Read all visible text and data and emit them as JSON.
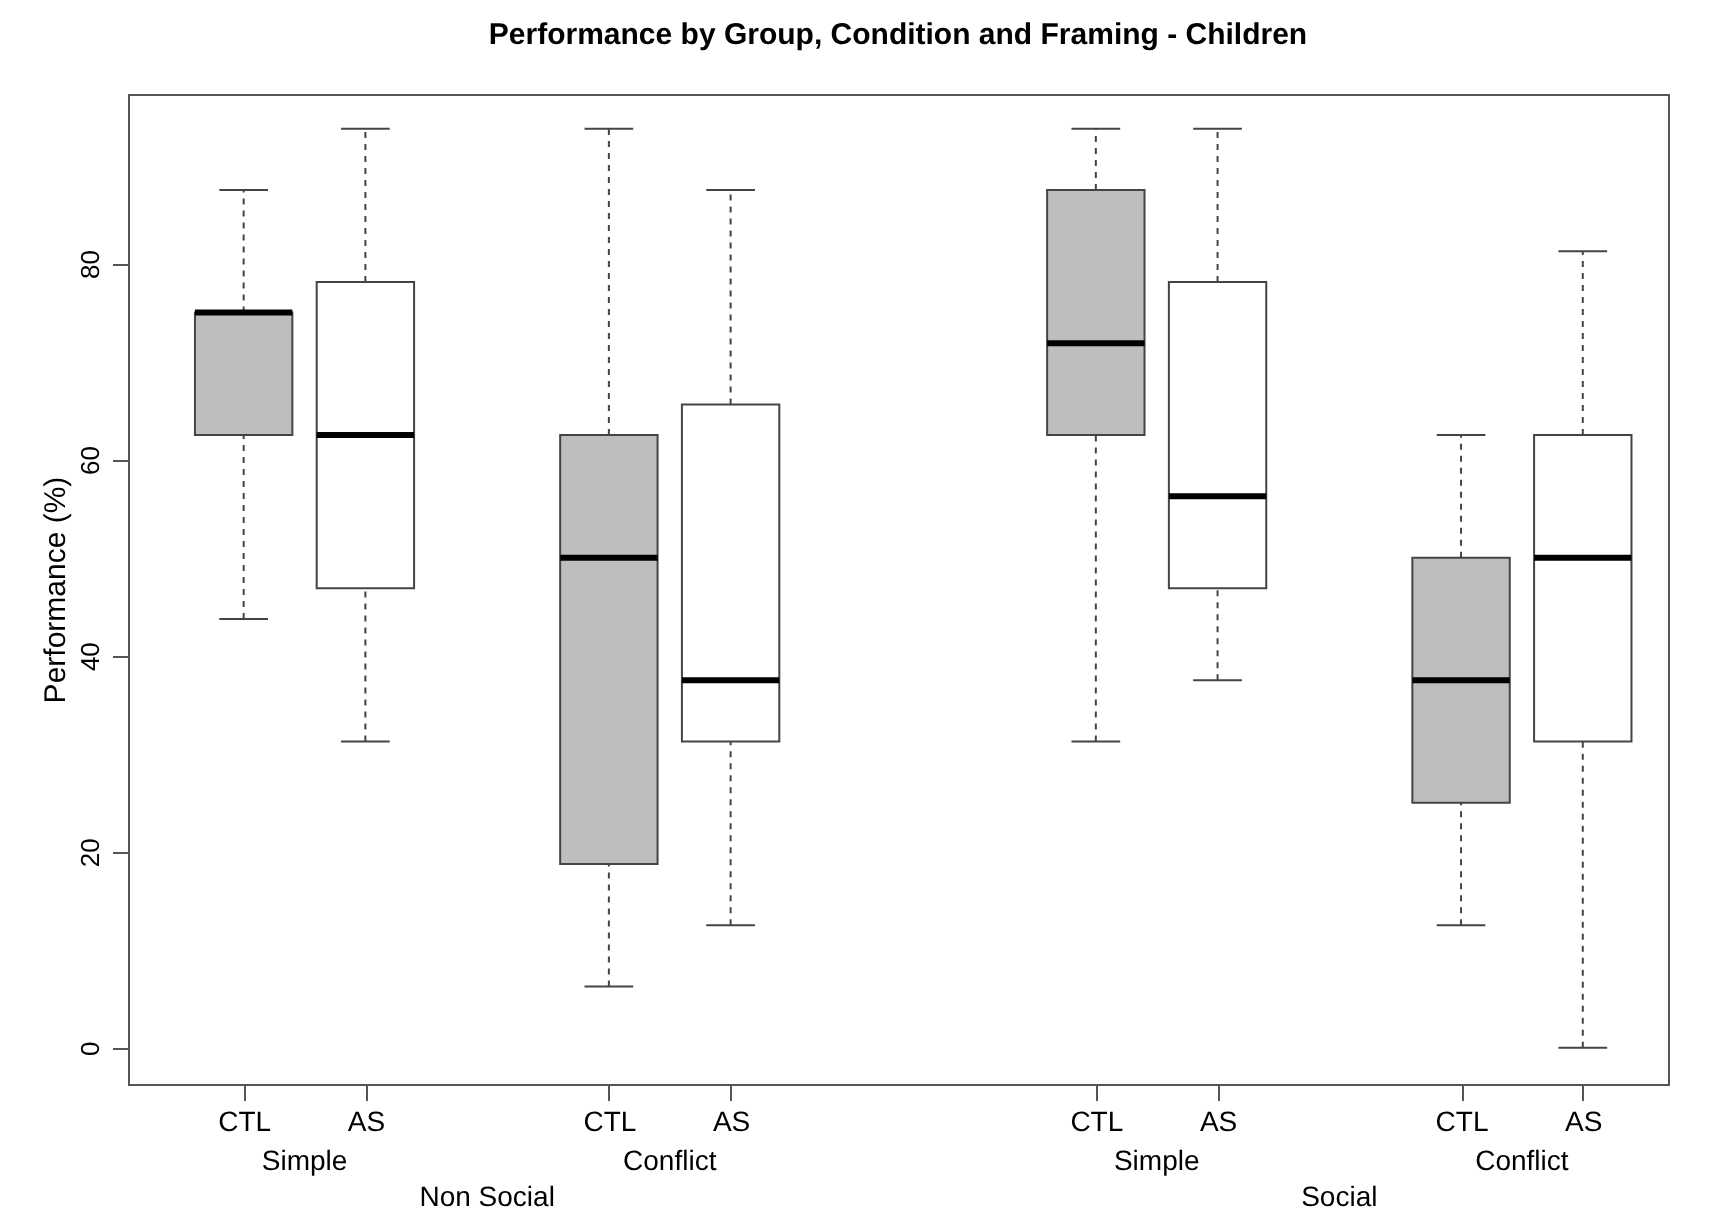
{
  "chart_data": {
    "type": "box",
    "title": "Performance by Group, Condition and Framing - Children",
    "ylabel": "Performance (%)",
    "categories": [
      "CTL",
      "AS",
      "CTL",
      "AS",
      "CTL",
      "AS",
      "CTL",
      "AS"
    ],
    "colors": [
      "#bebebe",
      "#ffffff",
      "#bebebe",
      "#ffffff",
      "#bebebe",
      "#ffffff",
      "#bebebe",
      "#ffffff"
    ],
    "boxes": [
      {
        "low": 43.75,
        "q1": 62.5,
        "median": 75,
        "q3": 75,
        "high": 87.5
      },
      {
        "low": 31.25,
        "q1": 46.875,
        "median": 62.5,
        "q3": 78.125,
        "high": 93.75
      },
      {
        "low": 6.25,
        "q1": 18.75,
        "median": 50,
        "q3": 62.5,
        "high": 93.75
      },
      {
        "low": 12.5,
        "q1": 31.25,
        "median": 37.5,
        "q3": 65.625,
        "high": 87.5
      },
      {
        "low": 31.25,
        "q1": 62.5,
        "median": 71.875,
        "q3": 87.5,
        "high": 93.75
      },
      {
        "low": 37.5,
        "q1": 46.875,
        "median": 56.25,
        "q3": 78.125,
        "high": 93.75
      },
      {
        "low": 12.5,
        "q1": 25,
        "median": 37.5,
        "q3": 50,
        "high": 62.5
      },
      {
        "low": 0,
        "q1": 31.25,
        "median": 50,
        "q3": 62.5,
        "high": 81.25
      }
    ],
    "annotations": [
      "Simple",
      "Conflict",
      "Simple",
      "Conflict",
      "Non Social",
      "Social"
    ],
    "ylim": [
      -3.7,
      97.3
    ],
    "yticks": [
      0,
      20,
      40,
      60,
      80
    ],
    "grid": false
  }
}
